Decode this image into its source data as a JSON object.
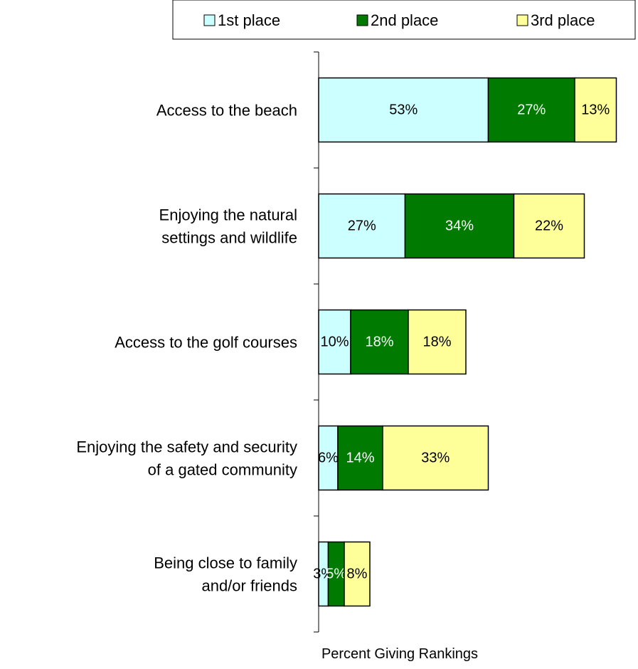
{
  "chart_data": {
    "type": "bar",
    "orientation": "horizontal",
    "stacked": true,
    "categories": [
      "Access to the beach",
      "Enjoying the natural settings and wildlife",
      "Access to the golf courses",
      "Enjoying the safety and security of a gated community",
      "Being close to family and/or friends"
    ],
    "category_lines": [
      [
        "Access to the beach"
      ],
      [
        "Enjoying the natural",
        "settings and wildlife"
      ],
      [
        "Access to the golf courses"
      ],
      [
        "Enjoying the safety and security",
        "of a gated community"
      ],
      [
        "Being close to family",
        "and/or friends"
      ]
    ],
    "series": [
      {
        "name": "1st place",
        "color": "#ccffff",
        "label_color": "#000000",
        "values": [
          53,
          27,
          10,
          6,
          3
        ],
        "labels": [
          "53%",
          "27%",
          "10%",
          "6%",
          "3%"
        ]
      },
      {
        "name": "2nd place",
        "color": "#007a00",
        "label_color": "#ffffff",
        "values": [
          27,
          34,
          18,
          14,
          5
        ],
        "labels": [
          "27%",
          "34%",
          "18%",
          "14%",
          "5%"
        ]
      },
      {
        "name": "3rd place",
        "color": "#ffff99",
        "label_color": "#000000",
        "values": [
          13,
          22,
          18,
          33,
          8
        ],
        "labels": [
          "13%",
          "22%",
          "18%",
          "33%",
          "8%"
        ]
      }
    ],
    "xlabel": "Percent Giving Rankings",
    "xlim": [
      0,
      100
    ],
    "grid": false,
    "legend_position": "top-right"
  }
}
